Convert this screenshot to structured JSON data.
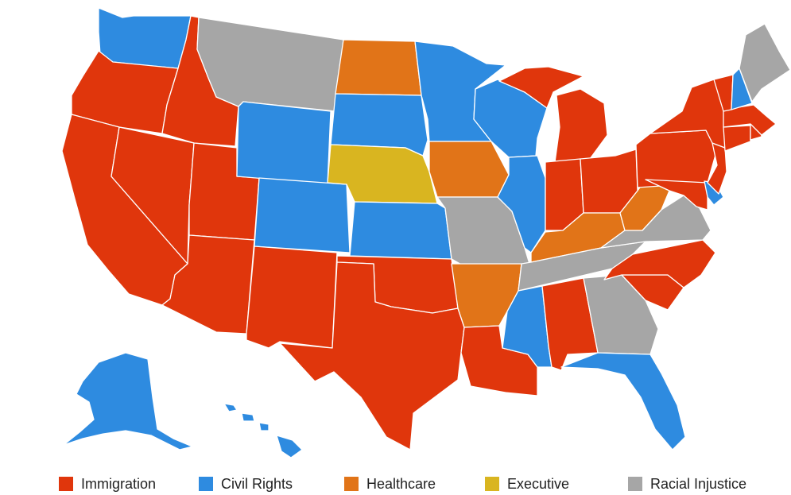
{
  "categories": {
    "immigration": {
      "label": "Immigration",
      "color": "#e0360c"
    },
    "civil_rights": {
      "label": "Civil Rights",
      "color": "#2e8be0"
    },
    "healthcare": {
      "label": "Healthcare",
      "color": "#e17418"
    },
    "executive": {
      "label": "Executive",
      "color": "#d9b520"
    },
    "racial_injustice": {
      "label": "Racial Injustice",
      "color": "#a6a6a6"
    }
  },
  "legend": [
    {
      "key": "immigration",
      "label": "Immigration"
    },
    {
      "key": "civil_rights",
      "label": "Civil Rights"
    },
    {
      "key": "healthcare",
      "label": "Healthcare"
    },
    {
      "key": "executive",
      "label": "Executive"
    },
    {
      "key": "racial_injustice",
      "label": "Racial Injustice"
    }
  ],
  "states": {
    "WA": "civil_rights",
    "OR": "immigration",
    "CA": "immigration",
    "ID": "immigration",
    "NV": "immigration",
    "UT": "immigration",
    "AZ": "immigration",
    "MT": "racial_injustice",
    "WY": "civil_rights",
    "CO": "civil_rights",
    "NM": "immigration",
    "ND": "healthcare",
    "SD": "civil_rights",
    "NE": "executive",
    "KS": "civil_rights",
    "OK": "immigration",
    "TX": "immigration",
    "MN": "civil_rights",
    "IA": "healthcare",
    "MO": "racial_injustice",
    "AR": "healthcare",
    "LA": "immigration",
    "WI": "civil_rights",
    "IL": "civil_rights",
    "MI": "immigration",
    "IN": "immigration",
    "OH": "immigration",
    "KY": "healthcare",
    "TN": "racial_injustice",
    "MS": "civil_rights",
    "AL": "immigration",
    "GA": "racial_injustice",
    "FL": "civil_rights",
    "SC": "immigration",
    "NC": "immigration",
    "VA": "racial_injustice",
    "WV": "healthcare",
    "MD": "immigration",
    "DE": "civil_rights",
    "PA": "immigration",
    "NJ": "immigration",
    "NY": "immigration",
    "CT": "immigration",
    "RI": "immigration",
    "MA": "immigration",
    "VT": "immigration",
    "NH": "civil_rights",
    "ME": "racial_injustice",
    "AK": "civil_rights",
    "HI": "civil_rights"
  }
}
